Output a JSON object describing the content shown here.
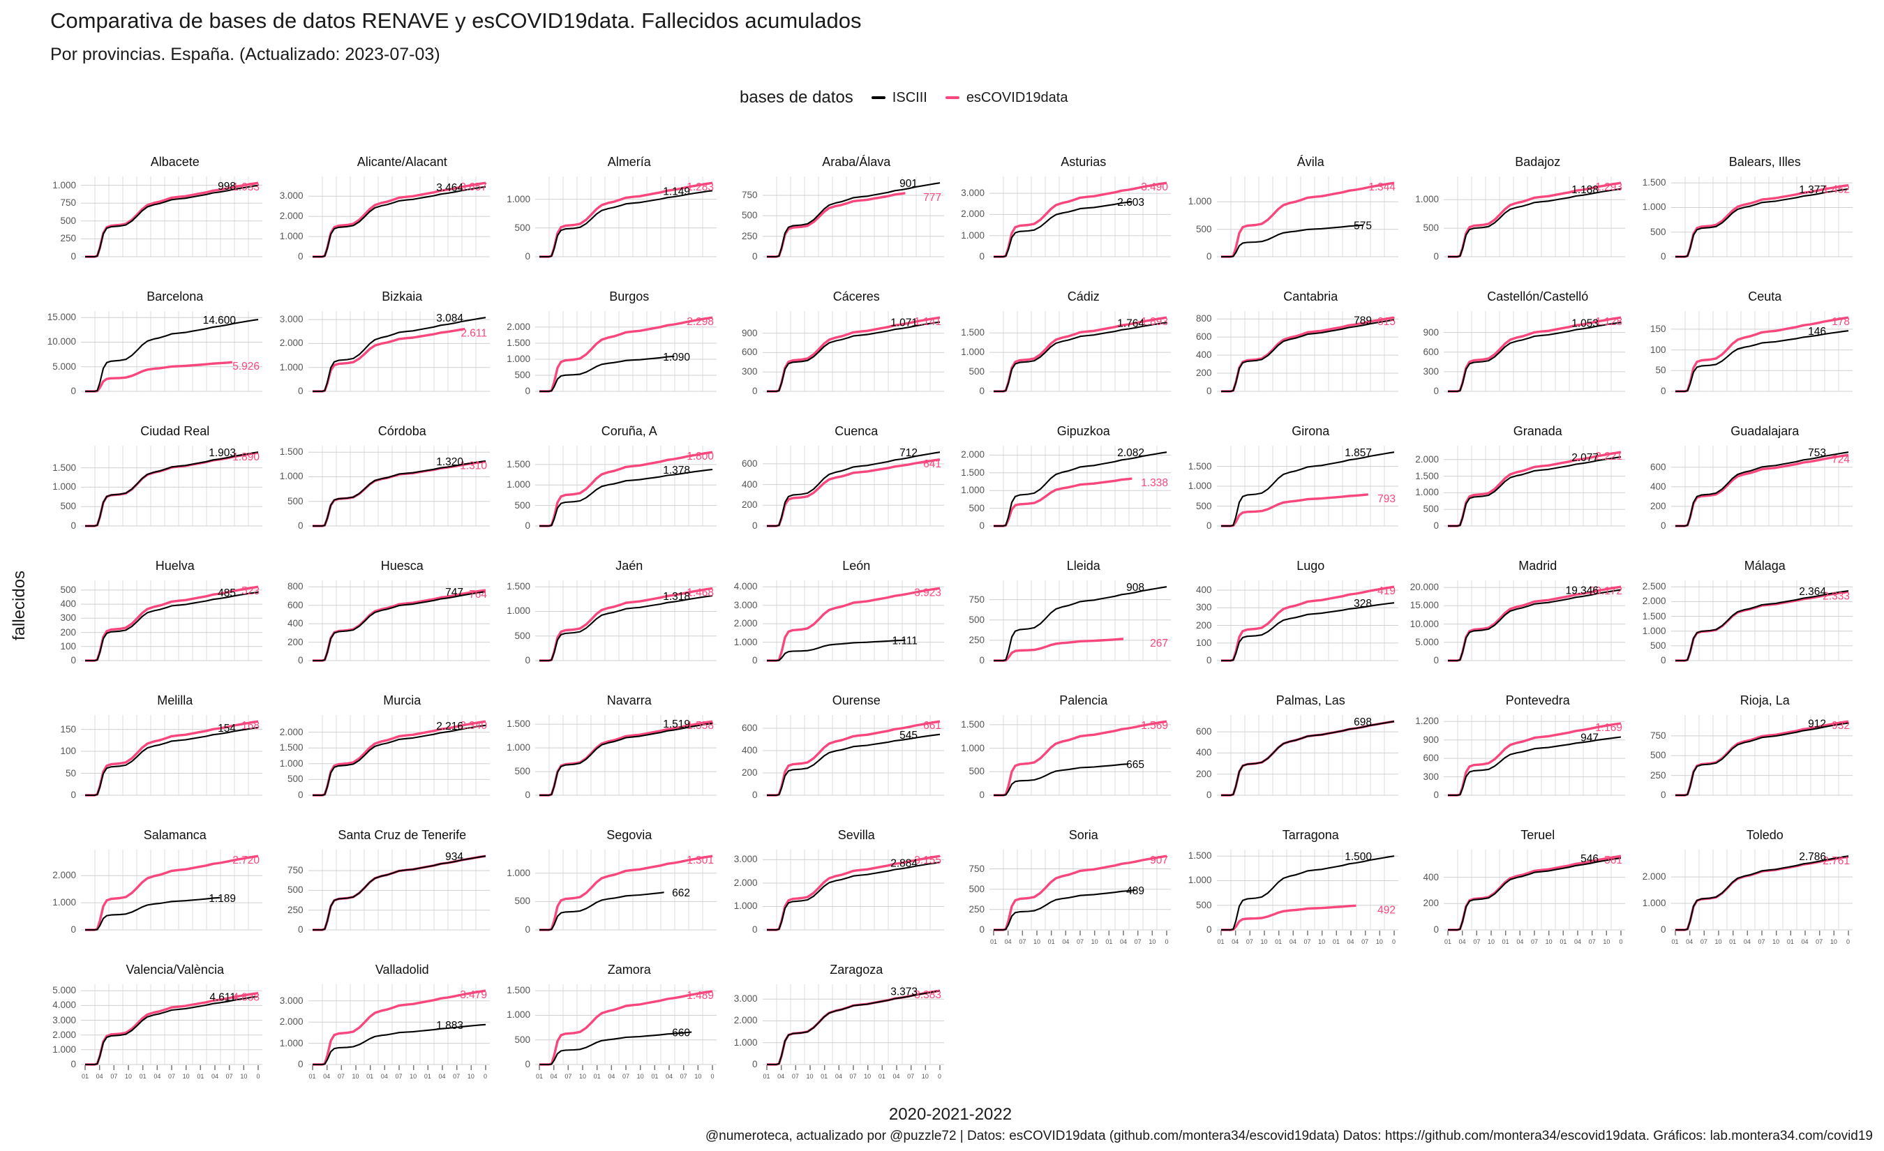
{
  "header": {
    "title": "Comparativa de bases de datos RENAVE y esCOVID19data. Fallecidos acumulados",
    "subtitle": "Por provincias. España. (Actualizado: 2023-07-03)"
  },
  "legend": {
    "title": "bases de datos",
    "series": [
      {
        "label": "ISCIII",
        "color": "#000000"
      },
      {
        "label": "esCOVID19data",
        "color": "#f8477c"
      }
    ]
  },
  "y_axis_label": "fallecidos",
  "x_axis_label": "2020-2021-2022",
  "caption": "@numeroteca, actualizado por @puzzle72 | Datos: esCOVID19data (github.com/montera34/escovid19data) Datos: https://github.com/montera34/escovid19data. Gráficos: lab.montera34.com/covid19",
  "chart_data": {
    "type": "line",
    "title": "Comparativa de bases de datos RENAVE y esCOVID19data. Fallecidos acumulados",
    "x_range": "2020-01 to 2023-01",
    "x_tick_labels": [
      "01",
      "04",
      "07",
      "10",
      "01",
      "04",
      "07",
      "10",
      "01",
      "04",
      "07",
      "10",
      "0"
    ],
    "series_names": [
      "ISCIII",
      "esCOVID19data"
    ],
    "colors": {
      "iscii": "#000000",
      "escovid": "#f8477c",
      "grid_h": "#cfcfcf",
      "grid_v": "#dedede"
    },
    "legend_position": "top",
    "grid": true,
    "panels": [
      {
        "n": "Albacete",
        "i": 998,
        "e": 1033,
        "t": [
          0,
          250,
          500,
          750,
          1000
        ]
      },
      {
        "n": "Alicante/Alacant",
        "i": 3464,
        "e": 3657,
        "t": [
          0,
          1000,
          2000,
          3000
        ]
      },
      {
        "n": "Almería",
        "i": 1149,
        "e": 1283,
        "t": [
          0,
          500,
          1000
        ]
      },
      {
        "n": "Araba/Álava",
        "i": 901,
        "e": 777,
        "t": [
          0,
          250,
          500,
          750
        ],
        "ee": 0.8
      },
      {
        "n": "Asturias",
        "i": 2603,
        "e": 3490,
        "t": [
          0,
          1000,
          2000,
          3000
        ],
        "ie": 0.8
      },
      {
        "n": "Ávila",
        "i": 575,
        "e": 1344,
        "t": [
          0,
          500,
          1000
        ],
        "ie": 0.82
      },
      {
        "n": "Badajoz",
        "i": 1188,
        "e": 1293,
        "t": [
          0,
          500,
          1000
        ]
      },
      {
        "n": "Balears, Illes",
        "i": 1377,
        "e": 1452,
        "t": [
          0,
          500,
          1000,
          1500
        ]
      },
      {
        "n": "Barcelona",
        "i": 14600,
        "e": 5926,
        "t": [
          0,
          5000,
          10000,
          15000
        ],
        "ee": 0.85
      },
      {
        "n": "Bizkaia",
        "i": 3084,
        "e": 2611,
        "t": [
          0,
          1000,
          2000,
          3000
        ],
        "ee": 0.88
      },
      {
        "n": "Burgos",
        "i": 1090,
        "e": 2298,
        "t": [
          0,
          500,
          1000,
          1500,
          2000
        ],
        "ie": 0.78
      },
      {
        "n": "Cáceres",
        "i": 1071,
        "e": 1141,
        "t": [
          0,
          300,
          600,
          900
        ]
      },
      {
        "n": "Cádiz",
        "i": 1764,
        "e": 1893,
        "t": [
          0,
          500,
          1000,
          1500
        ]
      },
      {
        "n": "Cantabria",
        "i": 789,
        "e": 815,
        "t": [
          0,
          200,
          400,
          600,
          800
        ]
      },
      {
        "n": "Castellón/Castelló",
        "i": 1053,
        "e": 1128,
        "t": [
          0,
          300,
          600,
          900
        ]
      },
      {
        "n": "Ceuta",
        "i": 146,
        "e": 178,
        "t": [
          0,
          50,
          100,
          150
        ]
      },
      {
        "n": "Ciudad Real",
        "i": 1903,
        "e": 1890,
        "t": [
          0,
          500,
          1000,
          1500
        ]
      },
      {
        "n": "Córdoba",
        "i": 1320,
        "e": 1310,
        "t": [
          0,
          500,
          1000,
          1500
        ]
      },
      {
        "n": "Coruña, A",
        "i": 1378,
        "e": 1800,
        "t": [
          0,
          500,
          1000,
          1500
        ]
      },
      {
        "n": "Cuenca",
        "i": 712,
        "e": 641,
        "t": [
          0,
          200,
          400,
          600
        ]
      },
      {
        "n": "Gipuzkoa",
        "i": 2082,
        "e": 1338,
        "t": [
          0,
          500,
          1000,
          1500,
          2000
        ],
        "ee": 0.8
      },
      {
        "n": "Girona",
        "i": 1857,
        "e": 793,
        "t": [
          0,
          500,
          1000,
          1500
        ],
        "ee": 0.85
      },
      {
        "n": "Granada",
        "i": 2077,
        "e": 2221,
        "t": [
          0,
          500,
          1000,
          1500,
          2000
        ]
      },
      {
        "n": "Guadalajara",
        "i": 753,
        "e": 724,
        "t": [
          0,
          200,
          400,
          600
        ]
      },
      {
        "n": "Huelva",
        "i": 485,
        "e": 523,
        "t": [
          0,
          100,
          200,
          300,
          400,
          500
        ]
      },
      {
        "n": "Huesca",
        "i": 747,
        "e": 764,
        "t": [
          0,
          200,
          400,
          600,
          800
        ]
      },
      {
        "n": "Jaén",
        "i": 1318,
        "e": 1468,
        "t": [
          0,
          500,
          1000,
          1500
        ]
      },
      {
        "n": "León",
        "i": 1111,
        "e": 3923,
        "t": [
          0,
          1000,
          2000,
          3000,
          4000
        ],
        "ie": 0.8
      },
      {
        "n": "Lleida",
        "i": 908,
        "e": 267,
        "t": [
          0,
          250,
          500,
          750
        ],
        "ee": 0.75
      },
      {
        "n": "Lugo",
        "i": 328,
        "e": 419,
        "t": [
          0,
          100,
          200,
          300,
          400
        ]
      },
      {
        "n": "Madrid",
        "i": 19346,
        "e": 20172,
        "t": [
          0,
          5000,
          10000,
          15000,
          20000
        ]
      },
      {
        "n": "Málaga",
        "i": 2364,
        "e": 2333,
        "t": [
          0,
          500,
          1000,
          1500,
          2000,
          2500
        ]
      },
      {
        "n": "Melilla",
        "i": 154,
        "e": 168,
        "t": [
          0,
          50,
          100,
          150
        ]
      },
      {
        "n": "Murcia",
        "i": 2216,
        "e": 2340,
        "t": [
          0,
          500,
          1000,
          1500,
          2000
        ]
      },
      {
        "n": "Navarra",
        "i": 1519,
        "e": 1558,
        "t": [
          0,
          500,
          1000,
          1500
        ]
      },
      {
        "n": "Ourense",
        "i": 545,
        "e": 661,
        "t": [
          0,
          200,
          400,
          600
        ]
      },
      {
        "n": "Palencia",
        "i": 665,
        "e": 1569,
        "t": [
          0,
          500,
          1000,
          1500
        ],
        "ie": 0.78
      },
      {
        "n": "Palmas, Las",
        "i": 698,
        "e": 698,
        "t": [
          0,
          200,
          400,
          600
        ],
        "he": true
      },
      {
        "n": "Pontevedra",
        "i": 947,
        "e": 1169,
        "t": [
          0,
          300,
          600,
          900,
          1200
        ]
      },
      {
        "n": "Rioja, La",
        "i": 912,
        "e": 932,
        "t": [
          0,
          250,
          500,
          750
        ]
      },
      {
        "n": "Salamanca",
        "i": 1189,
        "e": 2720,
        "t": [
          0,
          1000,
          2000
        ],
        "ie": 0.78
      },
      {
        "n": "Santa Cruz de Tenerife",
        "i": 934,
        "e": 934,
        "t": [
          0,
          250,
          500,
          750
        ],
        "he": true
      },
      {
        "n": "Segovia",
        "i": 662,
        "e": 1301,
        "t": [
          0,
          500,
          1000
        ],
        "ie": 0.72
      },
      {
        "n": "Sevilla",
        "i": 2884,
        "e": 3155,
        "t": [
          0,
          1000,
          2000,
          3000
        ]
      },
      {
        "n": "Soria",
        "i": 489,
        "e": 907,
        "t": [
          0,
          250,
          500,
          750
        ],
        "ie": 0.82,
        "sx": true
      },
      {
        "n": "Tarragona",
        "i": 1500,
        "e": 492,
        "t": [
          0,
          500,
          1000,
          1500
        ],
        "ee": 0.78,
        "sx": true
      },
      {
        "n": "Teruel",
        "i": 546,
        "e": 561,
        "t": [
          0,
          200,
          400
        ],
        "sx": true
      },
      {
        "n": "Toledo",
        "i": 2786,
        "e": 2761,
        "t": [
          0,
          1000,
          2000
        ],
        "sx": true
      },
      {
        "n": "Valencia/València",
        "i": 4611,
        "e": 4838,
        "t": [
          0,
          1000,
          2000,
          3000,
          4000,
          5000
        ],
        "sx": true
      },
      {
        "n": "Valladolid",
        "i": 1883,
        "e": 3479,
        "t": [
          0,
          1000,
          2000,
          3000
        ],
        "sx": true
      },
      {
        "n": "Zamora",
        "i": 660,
        "e": 1489,
        "t": [
          0,
          500,
          1000,
          1500
        ],
        "ie": 0.88,
        "sx": true
      },
      {
        "n": "Zaragoza",
        "i": 3373,
        "e": 3383,
        "t": [
          0,
          1000,
          2000,
          3000
        ],
        "sx": true
      }
    ]
  }
}
